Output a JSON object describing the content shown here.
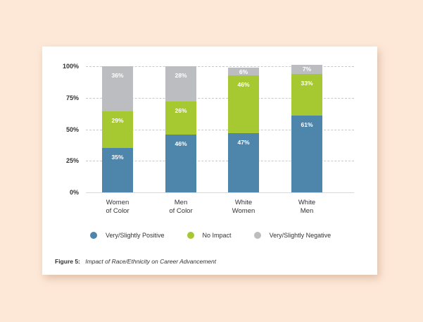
{
  "colors": {
    "background": "#fde7d6",
    "card": "#ffffff",
    "positive": "#4e86ab",
    "no_impact": "#a6c831",
    "negative": "#bcbdc0"
  },
  "y_ticks": [
    "100%",
    "75%",
    "50%",
    "25%",
    "0%"
  ],
  "categories": [
    {
      "line1": "Women",
      "line2": "of Color"
    },
    {
      "line1": "Men",
      "line2": "of Color"
    },
    {
      "line1": "White",
      "line2": "Women"
    },
    {
      "line1": "White",
      "line2": "Men"
    }
  ],
  "legend": {
    "positive": "Very/Slightly Positive",
    "no_impact": "No Impact",
    "negative": "Very/Slightly Negative"
  },
  "caption": {
    "figure": "Figure 5:",
    "title": "Impact of Race/Ethnicity on Career Advancement"
  },
  "chart_data": {
    "type": "bar",
    "stacked": true,
    "title": "Impact of Race/Ethnicity on Career Advancement",
    "xlabel": "",
    "ylabel": "",
    "ylim": [
      0,
      100
    ],
    "y_tick_labels": [
      "0%",
      "25%",
      "50%",
      "75%",
      "100%"
    ],
    "grid": true,
    "legend_position": "bottom",
    "categories": [
      "Women of Color",
      "Men of Color",
      "White Women",
      "White Men"
    ],
    "series": [
      {
        "name": "Very/Slightly Positive",
        "color": "#4e86ab",
        "values": [
          35,
          46,
          47,
          61
        ],
        "labels": [
          "35%",
          "46%",
          "47%",
          "61%"
        ]
      },
      {
        "name": "No Impact",
        "color": "#a6c831",
        "values": [
          29,
          26,
          46,
          33
        ],
        "labels": [
          "29%",
          "26%",
          "46%",
          "33%"
        ]
      },
      {
        "name": "Very/Slightly Negative",
        "color": "#bcbdc0",
        "values": [
          36,
          28,
          6,
          7
        ],
        "labels": [
          "36%",
          "28%",
          "6%",
          "7%"
        ]
      }
    ]
  }
}
